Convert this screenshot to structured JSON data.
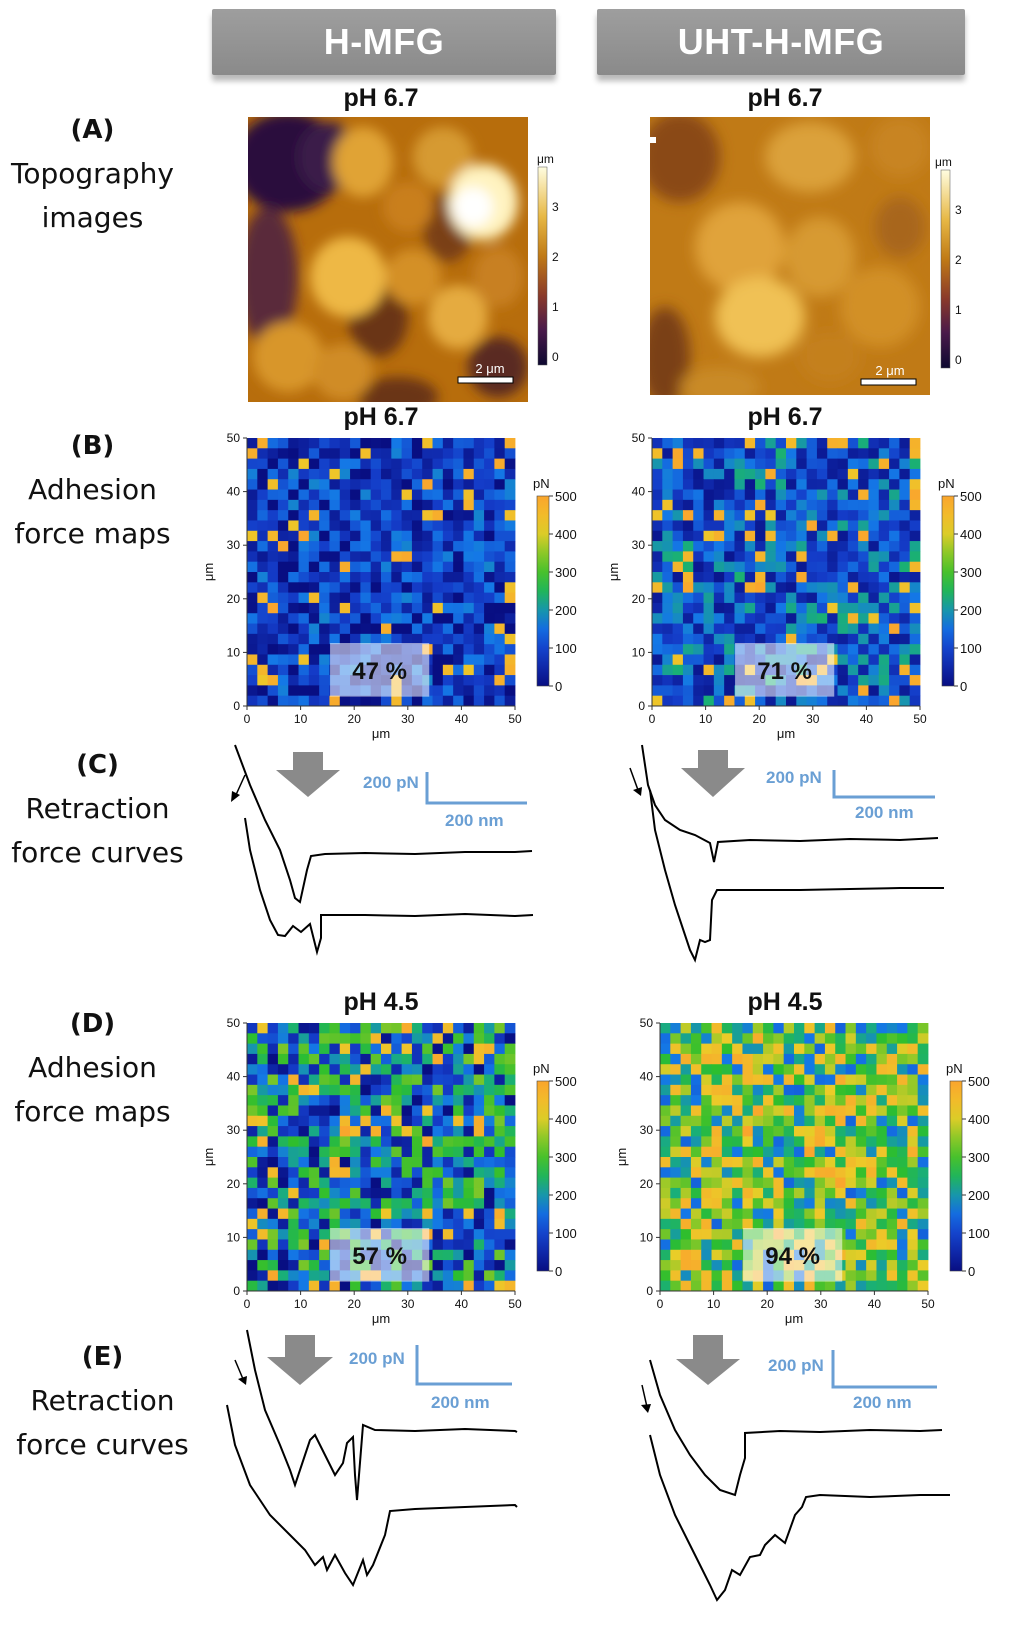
{
  "columns": [
    "H-MFG",
    "UHT-H-MFG"
  ],
  "rows": [
    {
      "letter": "(A)",
      "lines": [
        "Topography",
        "images"
      ]
    },
    {
      "letter": "(B)",
      "lines": [
        "Adhesion",
        "force maps"
      ]
    },
    {
      "letter": "(C)",
      "lines": [
        "Retraction",
        "force curves"
      ]
    },
    {
      "letter": "(D)",
      "lines": [
        "Adhesion",
        "force maps"
      ]
    },
    {
      "letter": "(E)",
      "lines": [
        "Retraction",
        "force curves"
      ]
    }
  ],
  "topography": {
    "ph": "pH 6.7",
    "unit": "μm",
    "ticks": [
      "3",
      "2",
      "1",
      "0"
    ],
    "scale_bar": "2 μm"
  },
  "adhesion_maps": {
    "axis_unit": "μm",
    "x_ticks": [
      "0",
      "10",
      "20",
      "30",
      "40",
      "50"
    ],
    "y_ticks": [
      "50",
      "40",
      "30",
      "20",
      "10",
      "0"
    ],
    "colorbar_unit": "pN",
    "colorbar_ticks": [
      "500",
      "400",
      "300",
      "200",
      "100",
      "0"
    ],
    "panels": [
      {
        "id": "B-left",
        "ph": "pH 6.7",
        "percent": "47 %"
      },
      {
        "id": "B-right",
        "ph": "pH 6.7",
        "percent": "71 %"
      },
      {
        "id": "D-left",
        "ph": "pH 4.5",
        "percent": "57 %"
      },
      {
        "id": "D-right",
        "ph": "pH 4.5",
        "percent": "94 %"
      }
    ]
  },
  "force_curves": {
    "scale_force": "200 pN",
    "scale_distance": "200 nm"
  },
  "colors": {
    "header_bg": "#8e8e8e",
    "scale_bar_blue": "#6a9fd4",
    "arrow_gray": "#8a8a8a",
    "afm_low": "#0d0830",
    "afm_high": "#fffde0"
  }
}
